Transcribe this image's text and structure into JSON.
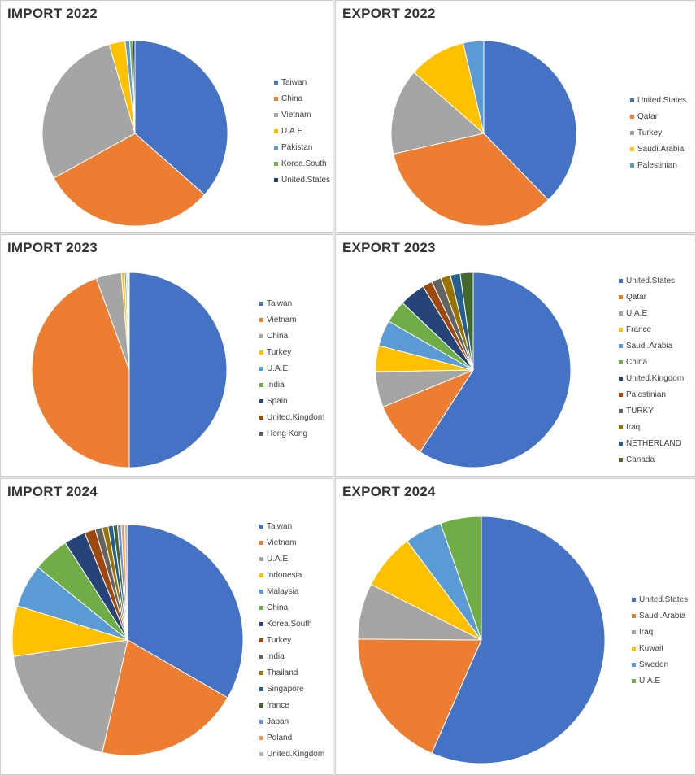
{
  "colors": {
    "blue": "#4472c4",
    "orange": "#ed7d31",
    "gray": "#a5a5a5",
    "gold": "#ffc000",
    "lightblue": "#5b9bd5",
    "green": "#70ad47",
    "navy": "#264478",
    "brown": "#9e480e",
    "darkgray": "#636363",
    "olive": "#997300",
    "steel": "#255e91",
    "darkgreen": "#43682b",
    "periwinkle": "#698ed0",
    "salmon": "#f1975a",
    "silver": "#b7b7b7"
  },
  "chart_data": [
    {
      "type": "pie",
      "title": "IMPORT 2022",
      "categories": [
        "Taiwan",
        "China",
        "Vietnam",
        "U.A.E",
        "Pakistan",
        "Korea.South",
        "United.States"
      ],
      "values": [
        36.5,
        30.5,
        28.5,
        2.8,
        0.8,
        0.5,
        0.4
      ]
    },
    {
      "type": "pie",
      "title": "EXPORT 2022",
      "categories": [
        "United.States",
        "Qatar",
        "Turkey",
        "Saudi.Arabia",
        "Palestinian"
      ],
      "values": [
        37,
        33,
        14.7,
        9.8,
        3.5
      ]
    },
    {
      "type": "pie",
      "title": "IMPORT 2023",
      "categories": [
        "Taiwan",
        "Vietnam",
        "China",
        "Turkey",
        "U.A.E",
        "India",
        "Spain",
        "United.Kingdom",
        "Hong Kong"
      ],
      "values": [
        50,
        44.5,
        4.2,
        0.5,
        0.3,
        0.2,
        0.1,
        0.1,
        0.1
      ]
    },
    {
      "type": "pie",
      "title": "EXPORT 2023",
      "categories": [
        "United.States",
        "Qatar",
        "U.A.E",
        "France",
        "Saudi.Arabia",
        "China",
        "United.Kingdom",
        "Palestinian",
        "TURKY",
        "Iraq",
        "NETHERLAND",
        "Canada"
      ],
      "values": [
        55,
        9,
        5.5,
        4,
        4,
        3.5,
        4,
        1.5,
        1.5,
        1.5,
        1.5,
        2
      ]
    },
    {
      "type": "pie",
      "title": "IMPORT 2024",
      "categories": [
        "Taiwan",
        "Vietnam",
        "U.A.E",
        "Indonesia",
        "Malaysia",
        "China",
        "Korea.South",
        "Turkey",
        "India",
        "Thailand",
        "Singapore",
        "france",
        "Japan",
        "Poland",
        "United.Kingdom"
      ],
      "values": [
        33,
        20,
        19,
        7,
        6,
        5,
        3,
        1.5,
        1,
        0.8,
        0.7,
        0.6,
        0.5,
        0.5,
        0.4
      ]
    },
    {
      "type": "pie",
      "title": "EXPORT 2024",
      "categories": [
        "United.States",
        "Saudi.Arabia",
        "Iraq",
        "Kuwait",
        "Sweden",
        "U.A.E"
      ],
      "values": [
        58,
        19,
        7.5,
        7.5,
        5,
        5.5
      ]
    }
  ]
}
